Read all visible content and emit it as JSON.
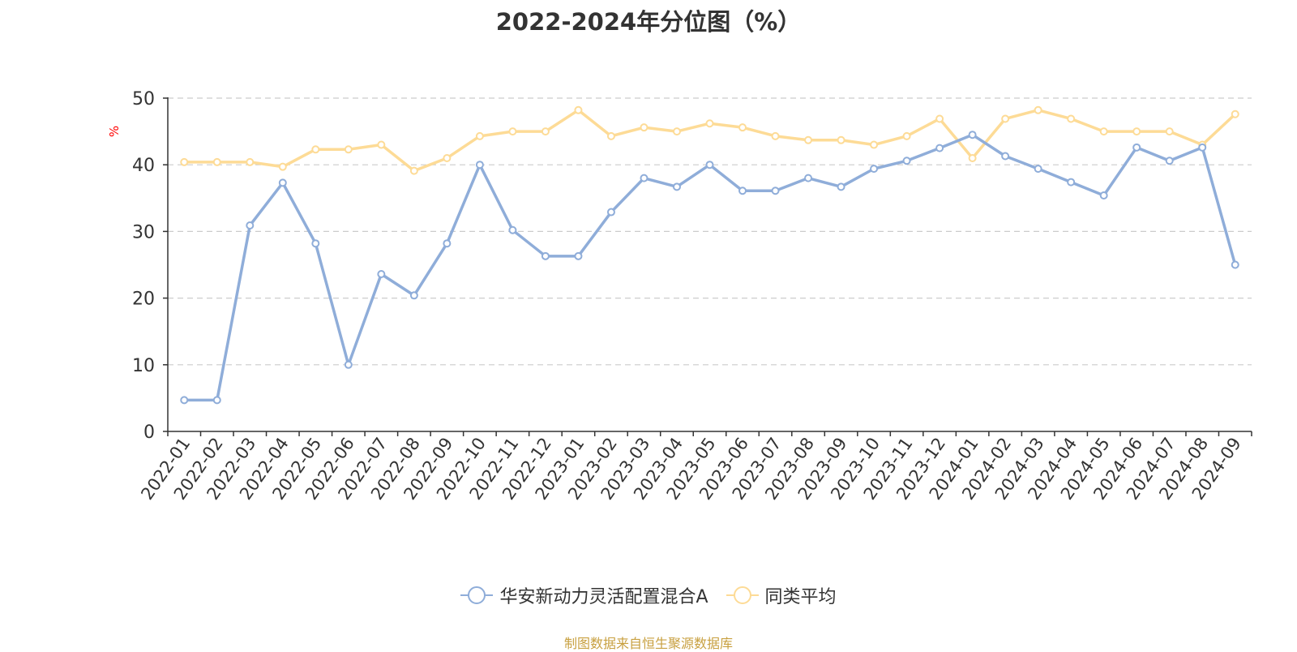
{
  "colors": {
    "series_a": "#8fadd9",
    "series_b": "#fddb96",
    "axis": "#333333",
    "grid": "#cccccc",
    "unit_label": "#ff0000",
    "source": "#c8a040"
  },
  "source_text": "制图数据来自恒生聚源数据库",
  "chart_data": {
    "type": "line",
    "title": "2022-2024年分位图（%）",
    "ylabel": "%",
    "xlabel": "",
    "ylim": [
      0,
      50
    ],
    "yticks": [
      0,
      10,
      20,
      30,
      40,
      50
    ],
    "grid": true,
    "legend_position": "bottom",
    "x": [
      "2022-01",
      "2022-02",
      "2022-03",
      "2022-04",
      "2022-05",
      "2022-06",
      "2022-07",
      "2022-08",
      "2022-09",
      "2022-10",
      "2022-11",
      "2022-12",
      "2023-01",
      "2023-02",
      "2023-03",
      "2023-04",
      "2023-05",
      "2023-06",
      "2023-07",
      "2023-08",
      "2023-09",
      "2023-10",
      "2023-11",
      "2023-12",
      "2024-01",
      "2024-02",
      "2024-03",
      "2024-04",
      "2024-05",
      "2024-06",
      "2024-07",
      "2024-08",
      "2024-09"
    ],
    "series": [
      {
        "name": "华安新动力灵活配置混合A",
        "color": "#8fadd9",
        "values": [
          4.7,
          4.7,
          30.9,
          37.3,
          28.2,
          10.0,
          23.6,
          20.4,
          28.2,
          40.0,
          30.2,
          26.3,
          26.3,
          32.9,
          38.0,
          36.7,
          40.0,
          36.1,
          36.1,
          38.0,
          36.7,
          39.4,
          40.6,
          42.5,
          44.5,
          41.3,
          39.4,
          37.4,
          35.4,
          42.6,
          40.6,
          42.6,
          25.0
        ]
      },
      {
        "name": "同类平均",
        "color": "#fddb96",
        "values": [
          40.4,
          40.4,
          40.4,
          39.7,
          42.3,
          42.3,
          43.0,
          39.1,
          41.0,
          44.3,
          45.0,
          45.0,
          48.2,
          44.3,
          45.6,
          45.0,
          46.2,
          45.6,
          44.3,
          43.7,
          43.7,
          43.0,
          44.3,
          46.9,
          41.0,
          46.9,
          48.2,
          46.9,
          45.0,
          45.0,
          45.0,
          43.0,
          47.6
        ]
      }
    ]
  }
}
